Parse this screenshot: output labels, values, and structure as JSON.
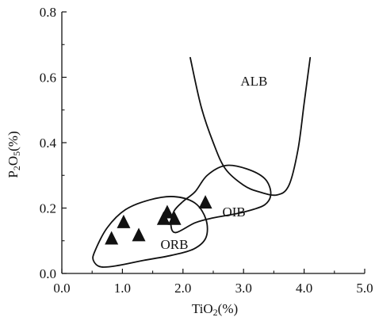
{
  "chart_data": {
    "type": "scatter",
    "xlabel": {
      "base": "TiO",
      "sub": "2",
      "unit": "(%)"
    },
    "ylabel": {
      "base1": "P",
      "sub1": "2",
      "base2": "O",
      "sub2": "5",
      "unit": "(%)"
    },
    "xlim": [
      0.0,
      5.0
    ],
    "ylim": [
      0.0,
      0.8
    ],
    "xticks": [
      "0.0",
      "1.0",
      "2.0",
      "3.0",
      "4.0",
      "5.0"
    ],
    "yticks": [
      "0.0",
      "0.2",
      "0.4",
      "0.6",
      "0.8"
    ],
    "grid": false,
    "marker": "filled-triangle",
    "points": [
      {
        "x": 0.82,
        "y": 0.105
      },
      {
        "x": 1.02,
        "y": 0.155
      },
      {
        "x": 1.27,
        "y": 0.115
      },
      {
        "x": 1.68,
        "y": 0.165
      },
      {
        "x": 1.74,
        "y": 0.185
      },
      {
        "x": 1.86,
        "y": 0.165
      },
      {
        "x": 2.37,
        "y": 0.215
      }
    ],
    "regions": [
      {
        "label": "ALB",
        "label_pos": [
          2.95,
          0.575
        ],
        "closed": false,
        "path": [
          [
            2.12,
            0.66
          ],
          [
            2.3,
            0.51
          ],
          [
            2.5,
            0.4
          ],
          [
            2.7,
            0.32
          ],
          [
            3.0,
            0.27
          ],
          [
            3.25,
            0.25
          ],
          [
            3.55,
            0.24
          ],
          [
            3.75,
            0.27
          ],
          [
            3.9,
            0.38
          ],
          [
            4.0,
            0.52
          ],
          [
            4.1,
            0.66
          ]
        ]
      },
      {
        "label": "OIB",
        "label_pos": [
          2.65,
          0.175
        ],
        "closed": true,
        "path": [
          [
            2.2,
            0.25
          ],
          [
            2.4,
            0.3
          ],
          [
            2.7,
            0.33
          ],
          [
            3.05,
            0.32
          ],
          [
            3.35,
            0.29
          ],
          [
            3.45,
            0.245
          ],
          [
            3.35,
            0.21
          ],
          [
            3.05,
            0.19
          ],
          [
            2.8,
            0.18
          ],
          [
            2.5,
            0.17
          ],
          [
            2.2,
            0.155
          ],
          [
            1.88,
            0.125
          ],
          [
            1.8,
            0.15
          ],
          [
            1.85,
            0.19
          ],
          [
            2.0,
            0.22
          ]
        ]
      },
      {
        "label": "ORB",
        "label_pos": [
          1.63,
          0.075
        ],
        "closed": true,
        "path": [
          [
            0.55,
            0.07
          ],
          [
            0.75,
            0.14
          ],
          [
            1.05,
            0.195
          ],
          [
            1.45,
            0.225
          ],
          [
            1.85,
            0.235
          ],
          [
            2.2,
            0.215
          ],
          [
            2.38,
            0.165
          ],
          [
            2.38,
            0.11
          ],
          [
            2.18,
            0.075
          ],
          [
            1.8,
            0.055
          ],
          [
            1.35,
            0.04
          ],
          [
            0.95,
            0.025
          ],
          [
            0.65,
            0.02
          ],
          [
            0.52,
            0.04
          ]
        ]
      }
    ]
  }
}
